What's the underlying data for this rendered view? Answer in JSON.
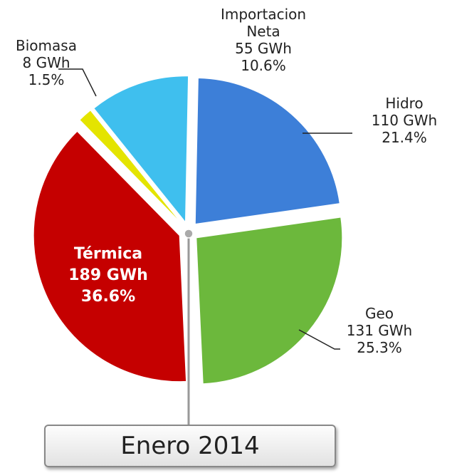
{
  "chart_data": {
    "type": "pie",
    "title": "Enero 2014",
    "categories": [
      "Hidro",
      "Geo",
      "Térmica",
      "Biomasa",
      "Importacion Neta"
    ],
    "values": [
      21.4,
      25.3,
      36.6,
      1.5,
      10.6
    ],
    "value_labels": [
      "21.4%",
      "25.3%",
      "36.6%",
      "1.5%",
      "10.6%"
    ],
    "gwh": [
      110,
      131,
      189,
      8,
      55
    ],
    "gwh_labels": [
      "110 GWh",
      "131 GWh",
      "189 GWh",
      "8 GWh",
      "55 GWh"
    ],
    "colors": [
      "#3d7fd8",
      "#6cb83c",
      "#c50000",
      "#e4e400",
      "#3fbfee"
    ]
  }
}
